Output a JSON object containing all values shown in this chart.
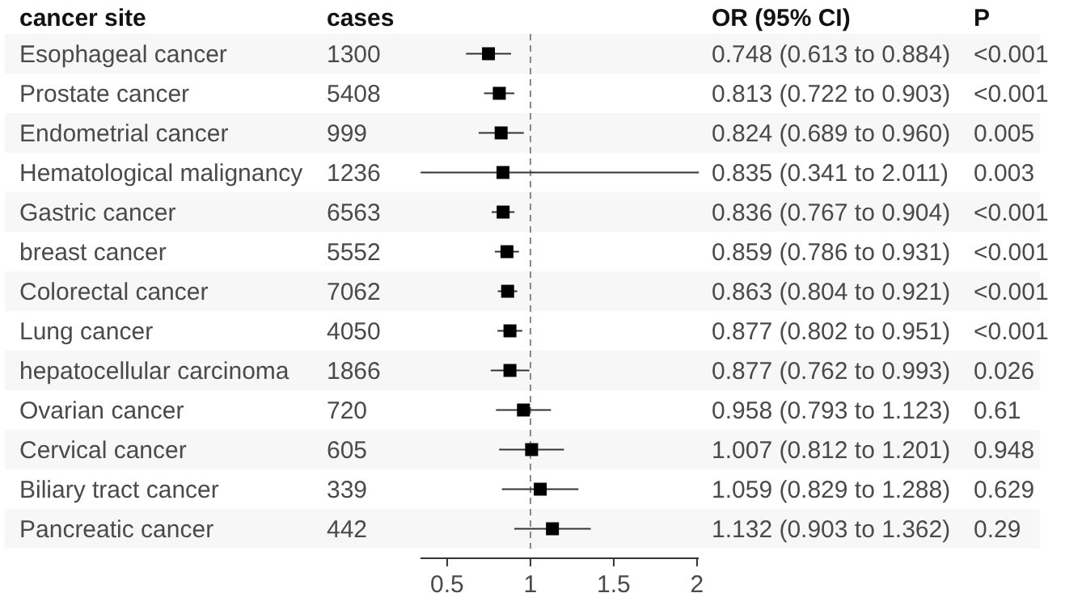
{
  "chart_data": {
    "type": "scatter",
    "orientation": "horizontal",
    "ylabel": "cancer site",
    "marker": "square",
    "color": "#000000",
    "categories": [
      "Esophageal cancer",
      "Prostate cancer",
      "Endometrial cancer",
      "Hematological malignancy",
      "Gastric cancer",
      "breast cancer",
      "Colorectal cancer",
      "Lung cancer",
      "hepatocellular carcinoma",
      "Ovarian cancer",
      "Cervical cancer",
      "Biliary tract cancer",
      "Pancreatic cancer"
    ],
    "values": [
      0.748,
      0.813,
      0.824,
      0.835,
      0.836,
      0.859,
      0.863,
      0.877,
      0.877,
      0.958,
      1.007,
      1.059,
      1.132
    ],
    "errors": [
      [
        0.613,
        0.884
      ],
      [
        0.722,
        0.903
      ],
      [
        0.689,
        0.96
      ],
      [
        0.341,
        2.011
      ],
      [
        0.767,
        0.904
      ],
      [
        0.786,
        0.931
      ],
      [
        0.804,
        0.921
      ],
      [
        0.802,
        0.951
      ],
      [
        0.762,
        0.993
      ],
      [
        0.793,
        1.123
      ],
      [
        0.812,
        1.201
      ],
      [
        0.829,
        1.288
      ],
      [
        0.903,
        1.362
      ]
    ],
    "value_labels": [
      "0.748 (0.613 to 0.884)",
      "0.813 (0.722 to 0.903)",
      "0.824 (0.689 to 0.960)",
      "0.835 (0.341 to 2.011)",
      "0.836 (0.767 to 0.904)",
      "0.859 (0.786 to 0.931)",
      "0.863 (0.804 to 0.921)",
      "0.877 (0.802 to 0.951)",
      "0.877 (0.762 to 0.993)",
      "0.958 (0.793 to 1.123)",
      "1.007 (0.812 to 1.201)",
      "1.059 (0.829 to 1.288)",
      "1.132 (0.903 to 1.362)"
    ],
    "xlim": [
      0.34,
      2.01
    ],
    "xticks": [
      0.5,
      1,
      1.5,
      2
    ],
    "ref_lines": [
      {
        "axis": "x",
        "value": 1,
        "color": "#888888",
        "line_style": "dashed"
      }
    ],
    "annotations": [
      "cases",
      "OR (95% CI)",
      "P",
      "1300",
      "<0.001",
      "5408",
      "<0.001",
      "999",
      "0.005",
      "1236",
      "0.003",
      "6563",
      "<0.001",
      "5552",
      "<0.001",
      "7062",
      "<0.001",
      "4050",
      "<0.001",
      "1866",
      "0.026",
      "720",
      "0.61",
      "605",
      "0.948",
      "339",
      "0.629",
      "442",
      "0.29"
    ]
  }
}
